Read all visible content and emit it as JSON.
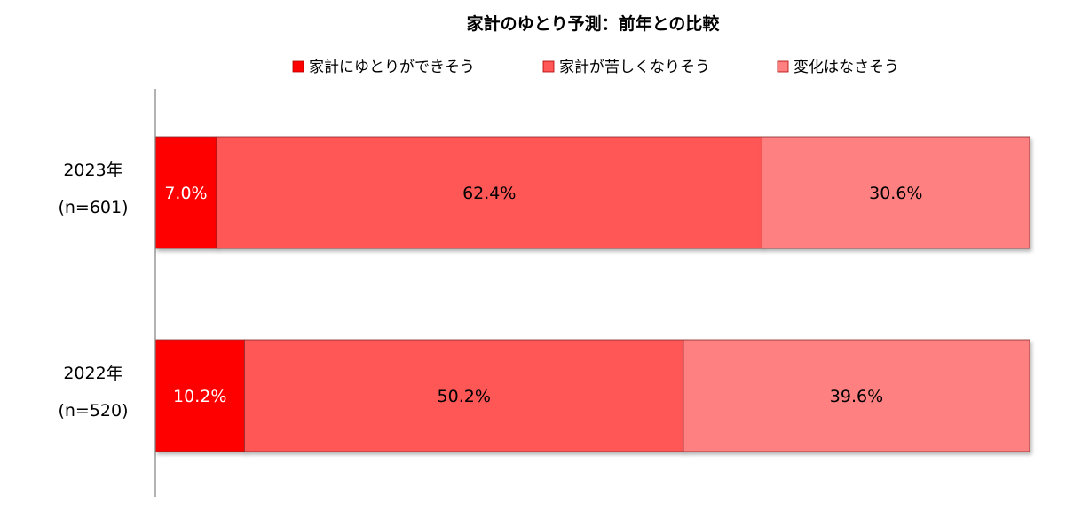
{
  "chart_data": {
    "type": "bar",
    "orientation": "horizontal",
    "stacked": true,
    "title": "家計のゆとり予測：前年との比較",
    "legend_position": "top",
    "xlim": [
      0,
      100
    ],
    "unit": "%",
    "categories": [
      {
        "year": "2023年",
        "n": "(n=601)"
      },
      {
        "year": "2022年",
        "n": "(n=520)"
      }
    ],
    "series": [
      {
        "name": "家計にゆとりができそう",
        "color": "#ff0000",
        "values": [
          7.0,
          10.2
        ],
        "labels": [
          "7.0%",
          "10.2%"
        ],
        "label_color": "#ffffff"
      },
      {
        "name": "家計が苦しくなりそう",
        "color": "#ff5757",
        "values": [
          62.4,
          50.2
        ],
        "labels": [
          "62.4%",
          "50.2%"
        ],
        "label_color": "#000000"
      },
      {
        "name": "変化はなさそう",
        "color": "#ff8080",
        "values": [
          30.6,
          39.6
        ],
        "labels": [
          "30.6%",
          "39.6%"
        ],
        "label_color": "#000000"
      }
    ]
  }
}
